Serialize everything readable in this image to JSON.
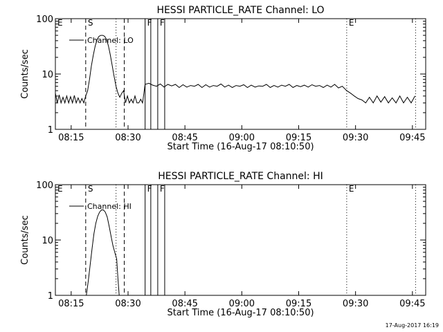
{
  "footer": {
    "timestamp": "17-Aug-2017 16:19"
  },
  "chart_data": [
    {
      "type": "line",
      "title": "HESSI PARTICLE_RATE Channel: LO",
      "xlabel": "Start Time (16-Aug-17 08:10:50)",
      "ylabel": "Counts/sec",
      "legend": {
        "entry": "Channel: LO",
        "placement": "top-left"
      },
      "xlim": [
        "08:10:50",
        "09:48:30"
      ],
      "ylim": [
        1,
        100
      ],
      "yscale": "log",
      "grid": false,
      "xticks": [
        "08:15",
        "08:30",
        "08:45",
        "09:00",
        "09:15",
        "09:30",
        "09:45"
      ],
      "yticks": [
        "1",
        "10",
        "100"
      ],
      "markers": [
        {
          "label": "E",
          "time": "08:10:50",
          "style": "none"
        },
        {
          "label": "S",
          "time": "08:18:50",
          "style": "dashed"
        },
        {
          "label": "",
          "time": "08:26:50",
          "style": "dotted"
        },
        {
          "label": "",
          "time": "08:29:00",
          "style": "dashed"
        },
        {
          "label": "F",
          "time": "08:34:30",
          "style": "solid"
        },
        {
          "label": "",
          "time": "08:36:00",
          "style": "solid"
        },
        {
          "label": "F",
          "time": "08:37:50",
          "style": "solid"
        },
        {
          "label": "",
          "time": "08:39:40",
          "style": "solid"
        },
        {
          "label": "E",
          "time": "09:27:40",
          "style": "dotted"
        },
        {
          "label": "",
          "time": "09:45:50",
          "style": "dotted"
        }
      ],
      "series": [
        {
          "name": "Channel: LO",
          "x": [
            "08:10:50",
            "08:11:20",
            "08:11:50",
            "08:12:20",
            "08:12:50",
            "08:13:20",
            "08:13:50",
            "08:14:20",
            "08:14:50",
            "08:15:20",
            "08:15:50",
            "08:16:20",
            "08:16:50",
            "08:17:20",
            "08:17:50",
            "08:18:20",
            "08:18:50",
            "08:19:20",
            "08:19:50",
            "08:20:20",
            "08:20:50",
            "08:21:20",
            "08:21:50",
            "08:22:20",
            "08:22:50",
            "08:23:20",
            "08:23:50",
            "08:24:20",
            "08:24:50",
            "08:25:20",
            "08:25:50",
            "08:26:20",
            "08:26:50",
            "08:27:20",
            "08:27:50",
            "08:28:20",
            "08:28:50",
            "08:29:20",
            "08:29:50",
            "08:30:20",
            "08:30:50",
            "08:31:20",
            "08:31:50",
            "08:32:20",
            "08:32:50",
            "08:33:20",
            "08:33:50",
            "08:34:30",
            "08:35:30",
            "08:36:30",
            "08:37:30",
            "08:38:30",
            "08:39:30",
            "08:40:30",
            "08:41:30",
            "08:42:30",
            "08:43:30",
            "08:44:30",
            "08:45:30",
            "08:46:30",
            "08:47:30",
            "08:48:30",
            "08:49:30",
            "08:50:30",
            "08:51:30",
            "08:52:30",
            "08:53:30",
            "08:54:30",
            "08:55:30",
            "08:56:30",
            "08:57:30",
            "08:58:30",
            "08:59:30",
            "09:00:30",
            "09:01:30",
            "09:02:30",
            "09:03:30",
            "09:04:30",
            "09:05:30",
            "09:06:30",
            "09:07:30",
            "09:08:30",
            "09:09:30",
            "09:10:30",
            "09:11:30",
            "09:12:30",
            "09:13:30",
            "09:14:30",
            "09:15:30",
            "09:16:30",
            "09:17:30",
            "09:18:30",
            "09:19:30",
            "09:20:30",
            "09:21:30",
            "09:22:30",
            "09:23:30",
            "09:24:30",
            "09:25:30",
            "09:26:30",
            "09:27:40",
            "09:28:40",
            "09:29:40",
            "09:30:40",
            "09:31:40",
            "09:32:40",
            "09:33:40",
            "09:34:40",
            "09:35:40",
            "09:36:40",
            "09:37:40",
            "09:38:40",
            "09:39:40",
            "09:40:40",
            "09:41:40",
            "09:42:40",
            "09:43:40",
            "09:44:40",
            "09:45:40"
          ],
          "values": [
            4.5,
            3.0,
            4.2,
            3.0,
            3.8,
            3.0,
            4.0,
            3.0,
            3.9,
            3.0,
            4.1,
            3.0,
            3.7,
            3.0,
            3.6,
            3.0,
            4.0,
            5.0,
            8.0,
            14,
            22,
            32,
            42,
            48,
            50,
            50,
            48,
            42,
            32,
            22,
            14,
            9,
            6,
            4.5,
            3.8,
            4.5,
            5.0,
            3.0,
            4.0,
            3.0,
            3.5,
            3.0,
            4.0,
            3.0,
            3.0,
            3.5,
            3.0,
            6.5,
            6.8,
            6.3,
            6.0,
            6.6,
            5.8,
            6.5,
            6.1,
            6.5,
            5.7,
            6.4,
            5.8,
            6.2,
            6.0,
            6.5,
            5.7,
            6.4,
            5.8,
            6.2,
            6.0,
            6.6,
            5.8,
            6.3,
            5.7,
            6.2,
            6.0,
            6.4,
            5.7,
            6.3,
            5.8,
            6.1,
            6.0,
            6.5,
            5.7,
            6.2,
            5.8,
            6.3,
            6.0,
            6.5,
            5.7,
            6.2,
            5.9,
            6.3,
            5.8,
            6.4,
            6.0,
            6.2,
            5.7,
            6.3,
            5.8,
            6.5,
            5.6,
            6.0,
            5.0,
            4.5,
            4.0,
            3.6,
            3.4,
            3.0,
            3.8,
            3.0,
            4.0,
            3.1,
            3.9,
            3.0,
            3.7,
            3.0,
            4.0,
            3.0,
            3.8,
            3.0,
            4.0
          ]
        }
      ]
    },
    {
      "type": "line",
      "title": "HESSI PARTICLE_RATE Channel: HI",
      "xlabel": "Start Time (16-Aug-17 08:10:50)",
      "ylabel": "Counts/sec",
      "legend": {
        "entry": "Channel: HI",
        "placement": "top-left"
      },
      "xlim": [
        "08:10:50",
        "09:48:30"
      ],
      "ylim": [
        1,
        100
      ],
      "yscale": "log",
      "grid": false,
      "xticks": [
        "08:15",
        "08:30",
        "08:45",
        "09:00",
        "09:15",
        "09:30",
        "09:45"
      ],
      "yticks": [
        "1",
        "10",
        "100"
      ],
      "markers": [
        {
          "label": "E",
          "time": "08:10:50",
          "style": "none"
        },
        {
          "label": "S",
          "time": "08:18:50",
          "style": "dashed"
        },
        {
          "label": "",
          "time": "08:26:50",
          "style": "dotted"
        },
        {
          "label": "",
          "time": "08:29:00",
          "style": "dashed"
        },
        {
          "label": "F",
          "time": "08:34:30",
          "style": "solid"
        },
        {
          "label": "",
          "time": "08:36:00",
          "style": "solid"
        },
        {
          "label": "F",
          "time": "08:37:50",
          "style": "solid"
        },
        {
          "label": "",
          "time": "08:39:40",
          "style": "solid"
        },
        {
          "label": "E",
          "time": "09:27:40",
          "style": "dotted"
        },
        {
          "label": "",
          "time": "09:45:50",
          "style": "dotted"
        }
      ],
      "series": [
        {
          "name": "Channel: HI",
          "x": [
            "08:19:00",
            "08:19:30",
            "08:20:00",
            "08:20:30",
            "08:21:00",
            "08:21:30",
            "08:22:00",
            "08:22:30",
            "08:23:00",
            "08:23:30",
            "08:24:00",
            "08:24:30",
            "08:25:00",
            "08:25:30",
            "08:26:00",
            "08:26:30",
            "08:27:00",
            "08:27:20",
            "08:27:40"
          ],
          "values": [
            1.0,
            1.8,
            3.5,
            7.0,
            13,
            20,
            27,
            32,
            35,
            35,
            32,
            26,
            18,
            12,
            8.0,
            6.0,
            4.5,
            2.0,
            1.0
          ]
        }
      ]
    }
  ]
}
